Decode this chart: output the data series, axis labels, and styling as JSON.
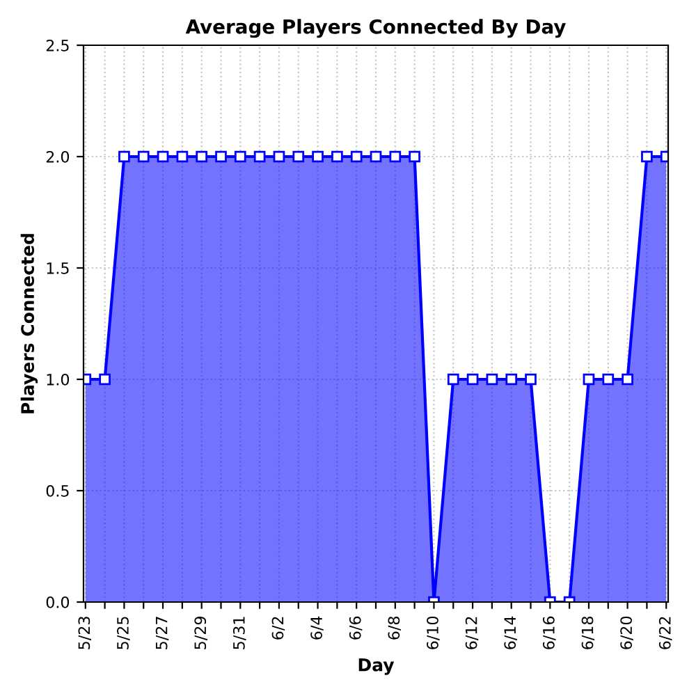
{
  "chart_data": {
    "type": "area",
    "title": "Average Players Connected By Day",
    "xlabel": "Day",
    "ylabel": "Players Connected",
    "categories": [
      "5/23",
      null,
      "5/25",
      null,
      "5/27",
      null,
      "5/29",
      null,
      "5/31",
      null,
      "6/2",
      null,
      "6/4",
      null,
      "6/6",
      null,
      "6/8",
      null,
      "6/10",
      null,
      "6/12",
      null,
      "6/14",
      null,
      "6/16",
      null,
      "6/18",
      null,
      "6/20",
      null,
      "6/22"
    ],
    "series": [
      {
        "color": "#0000ff",
        "values": [
          1,
          1,
          2,
          2,
          2,
          2,
          2,
          2,
          2,
          2,
          2,
          2,
          2,
          2,
          2,
          2,
          2,
          2,
          0,
          1,
          1,
          1,
          1,
          1,
          0,
          0,
          1,
          1,
          1,
          2,
          2
        ]
      }
    ],
    "ylim": [
      0,
      2.5
    ],
    "yticks": [
      {
        "value": 0,
        "label": "0.0"
      },
      {
        "value": 0.5,
        "label": "0.5"
      },
      {
        "value": 1,
        "label": "1.0"
      },
      {
        "value": 1.5,
        "label": "1.5"
      },
      {
        "value": 2,
        "label": "2.0"
      },
      {
        "value": 2.5,
        "label": "2.5"
      }
    ],
    "grid": true,
    "marker": "square",
    "line_style": "solid"
  }
}
